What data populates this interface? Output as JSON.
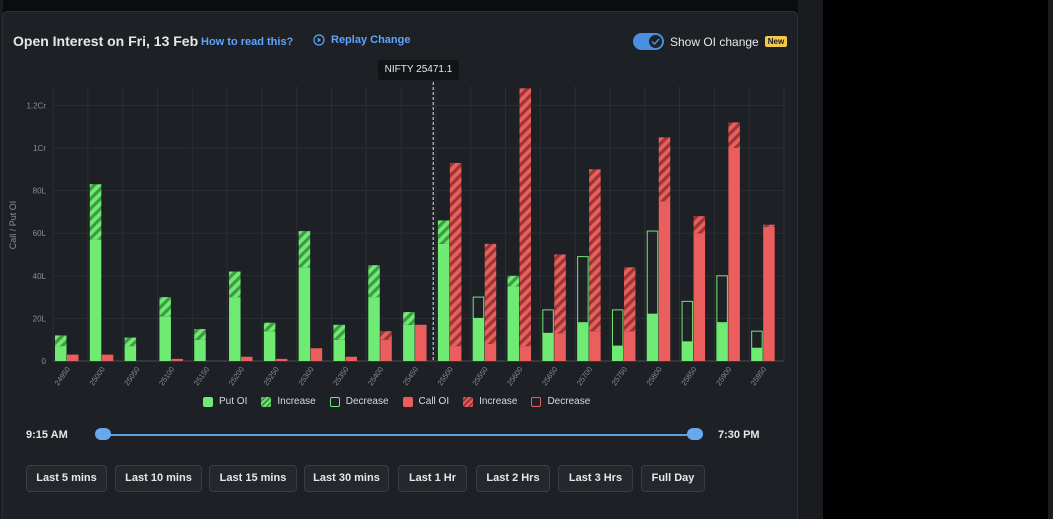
{
  "header": {
    "title": "Open Interest on Fri, 13 Feb",
    "how_to_read": "How to read this?",
    "replay": "Replay Change",
    "toggle_label": "Show OI change",
    "new_badge": "New",
    "toggle_on": true
  },
  "tooltip": {
    "text": "NIFTY 25471.1"
  },
  "colors": {
    "put": "#6fea72",
    "put_dark": "#3f9a45",
    "call": "#ea5e5e",
    "call_dark": "#9b3636",
    "grid": "#2b2f34",
    "axis_text": "#8a8e94"
  },
  "legend": {
    "items": [
      {
        "label": "Put OI",
        "kind": "put-solid"
      },
      {
        "label": "Increase",
        "kind": "put-hatch"
      },
      {
        "label": "Decrease",
        "kind": "put-outline"
      },
      {
        "label": "Call OI",
        "kind": "call-solid"
      },
      {
        "label": "Increase",
        "kind": "call-hatch"
      },
      {
        "label": "Decrease",
        "kind": "call-outline"
      }
    ]
  },
  "slider": {
    "start_label": "9:15 AM",
    "end_label": "7:30 PM"
  },
  "buttons": [
    "Last 5 mins",
    "Last 10 mins",
    "Last 15 mins",
    "Last 30 mins",
    "Last 1 Hr",
    "Last 2 Hrs",
    "Last 3 Hrs",
    "Full Day"
  ],
  "chart_data": {
    "type": "bar",
    "title": "Open Interest on Fri, 13 Feb",
    "ylabel": "Call / Put OI",
    "ylim": [
      0,
      128
    ],
    "y_ticks": [
      {
        "value": 0,
        "label": "0"
      },
      {
        "value": 20,
        "label": "20L"
      },
      {
        "value": 40,
        "label": "40L"
      },
      {
        "value": 60,
        "label": "60L"
      },
      {
        "value": 80,
        "label": "80L"
      },
      {
        "value": 100,
        "label": "1Cr"
      },
      {
        "value": 120,
        "label": "1.2Cr"
      }
    ],
    "spot_value": 25471.1,
    "categories": [
      "24950",
      "25000",
      "25050",
      "25100",
      "25150",
      "25200",
      "25250",
      "25300",
      "25350",
      "25400",
      "25450",
      "25500",
      "25550",
      "25600",
      "25650",
      "25700",
      "25750",
      "25800",
      "25850",
      "25900",
      "25950"
    ],
    "series": [
      {
        "name": "Put OI",
        "base": [
          7,
          57,
          7,
          21,
          10,
          30,
          14,
          44,
          10,
          30,
          17,
          55,
          20,
          35,
          13,
          18,
          7,
          22,
          9,
          18,
          6
        ],
        "change": [
          5,
          26,
          4,
          9,
          5,
          12,
          4,
          17,
          7,
          15,
          6,
          11,
          -10,
          5,
          -11,
          -31,
          -17,
          -39,
          -19,
          -22,
          -8
        ]
      },
      {
        "name": "Call OI",
        "base": [
          3,
          3,
          0,
          1,
          0,
          2,
          1,
          6,
          2,
          10,
          17,
          7,
          8,
          7,
          13,
          14,
          14,
          75,
          60,
          100,
          63
        ],
        "change": [
          0,
          0,
          0,
          0,
          0,
          0,
          0,
          0,
          0,
          4,
          0,
          86,
          47,
          121,
          37,
          76,
          30,
          30,
          8,
          12,
          1
        ]
      }
    ]
  }
}
